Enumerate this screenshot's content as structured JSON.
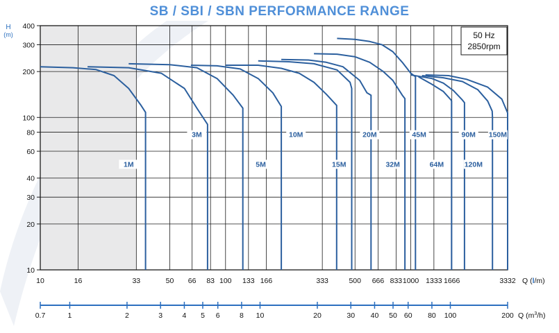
{
  "title": "SB / SBI / SBN  PERFORMANCE RANGE",
  "info_box": {
    "line1": "50 Hz",
    "line2": "2850rpm"
  },
  "colors": {
    "curve": "#2b5f9e",
    "grid": "#1a1a1a",
    "label": "#2b5f9e",
    "title": "#4f8fd8",
    "axis_blue": "#2b6fbf",
    "shade": "#e9e9ea"
  },
  "chart_data": {
    "type": "line",
    "title": "SB / SBI / SBN  PERFORMANCE RANGE",
    "y_axis": {
      "label_line1": "H",
      "label_line2": "(m)",
      "scale": "log",
      "range": [
        10,
        400
      ],
      "ticks": [
        10,
        20,
        30,
        40,
        60,
        80,
        100,
        200,
        300,
        400
      ]
    },
    "x_axis_lpm": {
      "label_prefix": "Q (",
      "label_unit": "l",
      "label_suffix": "/m)",
      "scale": "log",
      "range": [
        10,
        3332
      ],
      "ticks": [
        "10",
        "16",
        "33",
        "50",
        "66",
        "83",
        "100",
        "133",
        "166",
        "333",
        "500",
        "666",
        "833",
        "1000",
        "1333",
        "1666",
        "3332"
      ]
    },
    "x_axis_m3h": {
      "label_prefix": "Q (m",
      "label_sup": "3",
      "label_suffix": "/h)",
      "scale": "log",
      "range": [
        0.7,
        200
      ],
      "ticks": [
        "0.7",
        "1",
        "2",
        "3",
        "4",
        "5",
        "6",
        "8",
        "10",
        "20",
        "30",
        "40",
        "50",
        "60",
        "80",
        "100",
        "200"
      ]
    },
    "grid": true,
    "series": [
      {
        "name": "1M",
        "points": [
          [
            10,
            215
          ],
          [
            15,
            212
          ],
          [
            20,
            206
          ],
          [
            25,
            188
          ],
          [
            30,
            155
          ],
          [
            35,
            120
          ],
          [
            37,
            108
          ],
          [
            37,
            10
          ]
        ]
      },
      {
        "name": "3M",
        "points": [
          [
            18,
            215
          ],
          [
            30,
            212
          ],
          [
            45,
            195
          ],
          [
            60,
            155
          ],
          [
            70,
            115
          ],
          [
            80,
            90
          ],
          [
            80,
            10
          ]
        ]
      },
      {
        "name": "5M",
        "points": [
          [
            30,
            225
          ],
          [
            50,
            222
          ],
          [
            70,
            212
          ],
          [
            90,
            180
          ],
          [
            110,
            140
          ],
          [
            124,
            115
          ],
          [
            124,
            10
          ]
        ]
      },
      {
        "name": "10M",
        "points": [
          [
            65,
            220
          ],
          [
            90,
            218
          ],
          [
            120,
            208
          ],
          [
            150,
            180
          ],
          [
            180,
            145
          ],
          [
            200,
            118
          ],
          [
            200,
            10
          ]
        ]
      },
      {
        "name": "15M",
        "points": [
          [
            100,
            220
          ],
          [
            150,
            220
          ],
          [
            200,
            210
          ],
          [
            250,
            195
          ],
          [
            300,
            170
          ],
          [
            350,
            142
          ],
          [
            398,
            120
          ],
          [
            398,
            10
          ]
        ]
      },
      {
        "name": "20M",
        "points": [
          [
            150,
            235
          ],
          [
            220,
            232
          ],
          [
            300,
            225
          ],
          [
            400,
            205
          ],
          [
            470,
            170
          ],
          [
            480,
            155
          ],
          [
            480,
            10
          ]
        ]
      },
      {
        "name": "32M",
        "points": [
          [
            200,
            240
          ],
          [
            280,
            238
          ],
          [
            350,
            230
          ],
          [
            430,
            215
          ],
          [
            530,
            175
          ],
          [
            580,
            145
          ],
          [
            610,
            140
          ],
          [
            610,
            10
          ]
        ]
      },
      {
        "name": "45M",
        "points": [
          [
            300,
            262
          ],
          [
            400,
            260
          ],
          [
            500,
            250
          ],
          [
            600,
            230
          ],
          [
            710,
            200
          ],
          [
            800,
            175
          ],
          [
            900,
            140
          ],
          [
            930,
            133
          ],
          [
            930,
            10
          ]
        ]
      },
      {
        "name": "64M",
        "points": [
          [
            400,
            330
          ],
          [
            500,
            325
          ],
          [
            600,
            315
          ],
          [
            700,
            300
          ],
          [
            800,
            270
          ],
          [
            900,
            230
          ],
          [
            1000,
            195
          ],
          [
            1060,
            185
          ],
          [
            1060,
            10
          ]
        ]
      },
      {
        "name": "90M",
        "points": [
          [
            1000,
            190
          ],
          [
            1300,
            180
          ],
          [
            1500,
            168
          ],
          [
            1700,
            150
          ],
          [
            1900,
            130
          ],
          [
            1950,
            125
          ],
          [
            1950,
            10
          ]
        ]
      },
      {
        "name": "120M",
        "points": [
          [
            1100,
            185
          ],
          [
            1300,
            165
          ],
          [
            1500,
            148
          ],
          [
            1650,
            130
          ],
          [
            1660,
            128
          ],
          [
            1660,
            10
          ]
        ]
      },
      {
        "name": "150M",
        "points": [
          [
            1150,
            188
          ],
          [
            1500,
            182
          ],
          [
            1900,
            172
          ],
          [
            2300,
            152
          ],
          [
            2600,
            128
          ],
          [
            2750,
            110
          ],
          [
            2760,
            100
          ],
          [
            2760,
            10
          ]
        ]
      },
      {
        "name": "",
        "points": [
          [
            1200,
            190
          ],
          [
            1600,
            188
          ],
          [
            2000,
            178
          ],
          [
            2600,
            158
          ],
          [
            3100,
            132
          ],
          [
            3332,
            107
          ],
          [
            3332,
            10
          ]
        ]
      }
    ],
    "curve_labels": [
      {
        "text": "1M",
        "at": [
          30,
          48
        ]
      },
      {
        "text": "3M",
        "at": [
          70,
          75
        ]
      },
      {
        "text": "5M",
        "at": [
          155,
          48
        ]
      },
      {
        "text": "10M",
        "at": [
          240,
          75
        ]
      },
      {
        "text": "15M",
        "at": [
          410,
          48
        ]
      },
      {
        "text": "20M",
        "at": [
          600,
          75
        ]
      },
      {
        "text": "32M",
        "at": [
          800,
          48
        ]
      },
      {
        "text": "45M",
        "at": [
          1110,
          75
        ]
      },
      {
        "text": "64M",
        "at": [
          1380,
          48
        ]
      },
      {
        "text": "90M",
        "at": [
          2050,
          75
        ]
      },
      {
        "text": "120M",
        "at": [
          2180,
          48
        ]
      },
      {
        "text": "150M",
        "at": [
          2950,
          75
        ]
      }
    ]
  }
}
